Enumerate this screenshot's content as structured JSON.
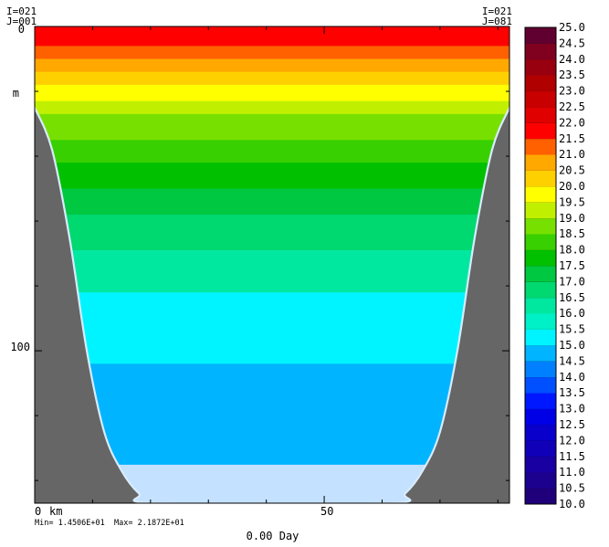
{
  "corners": {
    "left_i": "I=021",
    "left_j": "J=001",
    "right_i": "I=021",
    "right_j": "J=081"
  },
  "stats": {
    "min": "Min= 1.4506E+01",
    "max": "Max= 2.1872E+01"
  },
  "time_label": "0.00 Day",
  "colors": {
    "bottom_fill": "#666666",
    "below_data": "#c4e1ff",
    "outline": "#000000"
  },
  "chart_data": {
    "type": "heatmap",
    "title": "",
    "xlabel": "km",
    "ylabel": "m",
    "xlim": [
      0,
      82
    ],
    "ylim": [
      147,
      0
    ],
    "x_ticks": [
      {
        "value": 0,
        "label": "0"
      },
      {
        "value": 50,
        "label": "50"
      }
    ],
    "x_unit_label": "km",
    "y_ticks": [
      {
        "value": 0,
        "label": "0"
      },
      {
        "value": 100,
        "label": "100"
      }
    ],
    "y_unit_label": "m",
    "y_unit_at": 20,
    "x_minor_step": 10,
    "y_minor_step": 20,
    "bottom_profile": [
      [
        0,
        25
      ],
      [
        3,
        38
      ],
      [
        6,
        65
      ],
      [
        9,
        100
      ],
      [
        12,
        125
      ],
      [
        15,
        137
      ],
      [
        18,
        144
      ],
      [
        21,
        147
      ],
      [
        61,
        147
      ],
      [
        64,
        144
      ],
      [
        67,
        137
      ],
      [
        70,
        125
      ],
      [
        73,
        100
      ],
      [
        76,
        65
      ],
      [
        79,
        38
      ],
      [
        82,
        25
      ]
    ],
    "colorbar": {
      "levels": [
        10.0,
        10.5,
        11.0,
        11.5,
        12.0,
        12.5,
        13.0,
        13.5,
        14.0,
        14.5,
        15.0,
        15.5,
        16.0,
        16.5,
        17.0,
        17.5,
        18.0,
        18.5,
        19.0,
        19.5,
        20.0,
        20.5,
        21.0,
        21.5,
        22.0,
        22.5,
        23.0,
        23.5,
        24.0,
        24.5,
        25.0
      ],
      "labels": [
        "10.0",
        "10.5",
        "11.0",
        "11.5",
        "12.0",
        "12.5",
        "13.0",
        "13.5",
        "14.0",
        "14.5",
        "15.0",
        "15.5",
        "16.0",
        "16.5",
        "17.0",
        "17.5",
        "18.0",
        "18.5",
        "19.0",
        "19.5",
        "20.0",
        "20.5",
        "21.0",
        "21.5",
        "22.0",
        "22.5",
        "23.0",
        "23.5",
        "24.0",
        "24.5",
        "25.0"
      ],
      "colors": [
        "#20007a",
        "#1c008e",
        "#1900a2",
        "#1000b8",
        "#0a00cc",
        "#0000e6",
        "#0018ff",
        "#0050ff",
        "#0080ff",
        "#00b4ff",
        "#00f4ff",
        "#00f0c8",
        "#00e8a0",
        "#00d870",
        "#00c840",
        "#00c000",
        "#38d000",
        "#78e000",
        "#c0f000",
        "#ffff00",
        "#ffd000",
        "#ffa800",
        "#ff6000",
        "#ff0000",
        "#e00000",
        "#c80000",
        "#b00000",
        "#980010",
        "#800020",
        "#600030"
      ]
    },
    "temperature_profile": [
      {
        "depth_from": 0,
        "depth_to": 6,
        "value": 21.87
      },
      {
        "depth_from": 6,
        "depth_to": 10,
        "value": 21.2
      },
      {
        "depth_from": 10,
        "depth_to": 14,
        "value": 20.8
      },
      {
        "depth_from": 14,
        "depth_to": 18,
        "value": 20.2
      },
      {
        "depth_from": 18,
        "depth_to": 23,
        "value": 19.7
      },
      {
        "depth_from": 23,
        "depth_to": 27,
        "value": 19.2
      },
      {
        "depth_from": 27,
        "depth_to": 35,
        "value": 18.7
      },
      {
        "depth_from": 35,
        "depth_to": 42,
        "value": 18.2
      },
      {
        "depth_from": 42,
        "depth_to": 50,
        "value": 17.6
      },
      {
        "depth_from": 50,
        "depth_to": 58,
        "value": 17.2
      },
      {
        "depth_from": 58,
        "depth_to": 69,
        "value": 16.7
      },
      {
        "depth_from": 69,
        "depth_to": 82,
        "value": 16.2
      },
      {
        "depth_from": 82,
        "depth_to": 104,
        "value": 15.2
      },
      {
        "depth_from": 104,
        "depth_to": 135,
        "value": 14.6
      }
    ]
  }
}
